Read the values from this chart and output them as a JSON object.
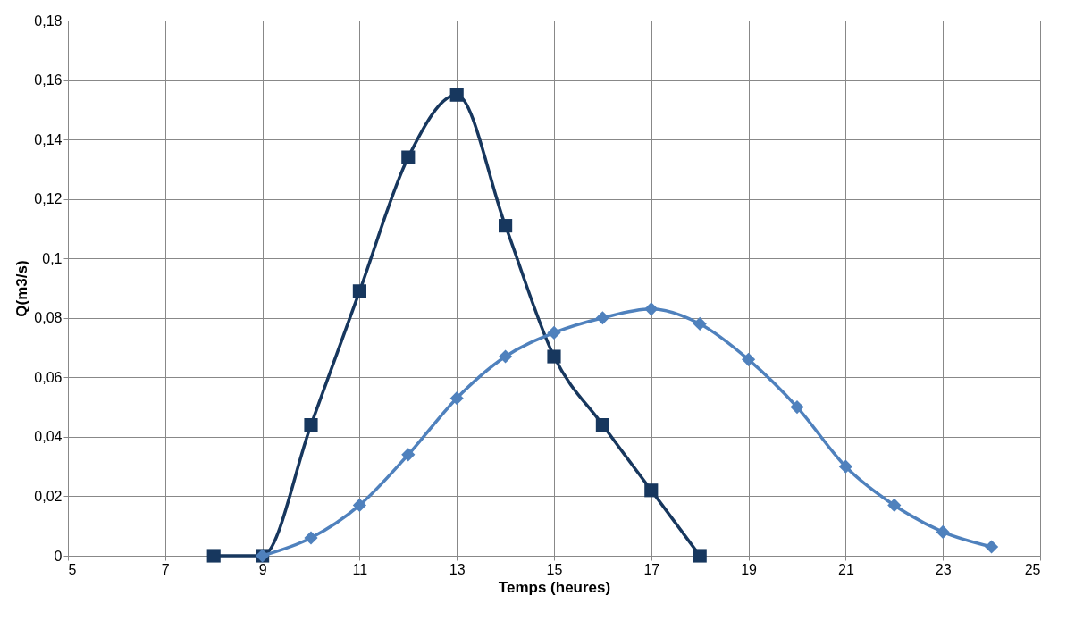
{
  "chart_data": {
    "type": "line",
    "xlabel": "Temps (heures)",
    "ylabel": "Q(m3/s)",
    "xlim": [
      5,
      25
    ],
    "xticks": [
      5,
      7,
      9,
      11,
      13,
      15,
      17,
      19,
      21,
      23,
      25
    ],
    "ylim": [
      0,
      0.18
    ],
    "yticks": [
      0,
      {
        "value": 0.02,
        "label": "0,02"
      },
      {
        "value": 0.04,
        "label": "0,04"
      },
      {
        "value": 0.06,
        "label": "0,06"
      },
      {
        "value": 0.08,
        "label": "0,08"
      },
      {
        "value": 0.1,
        "label": "0,1"
      },
      {
        "value": 0.12,
        "label": "0,12"
      },
      {
        "value": 0.14,
        "label": "0,14"
      },
      {
        "value": 0.16,
        "label": "0,16"
      },
      {
        "value": 0.18,
        "label": "0,18"
      }
    ],
    "grid": true,
    "line_style": "solid",
    "series": [
      {
        "color": "#17375e",
        "marker": "square",
        "x": [
          8,
          9,
          10,
          11,
          12,
          13,
          14,
          15,
          16,
          17,
          18
        ],
        "values": [
          0,
          0,
          0.044,
          0.089,
          0.134,
          0.155,
          0.111,
          0.067,
          0.044,
          0.022,
          0
        ]
      },
      {
        "color": "#4f81bd",
        "marker": "diamond",
        "x": [
          9,
          10,
          11,
          12,
          13,
          14,
          15,
          16,
          17,
          18,
          19,
          20,
          21,
          22,
          23,
          24
        ],
        "values": [
          0,
          0.006,
          0.017,
          0.034,
          0.053,
          0.067,
          0.075,
          0.08,
          0.083,
          0.078,
          0.066,
          0.05,
          0.03,
          0.017,
          0.008,
          0.003
        ]
      }
    ]
  }
}
